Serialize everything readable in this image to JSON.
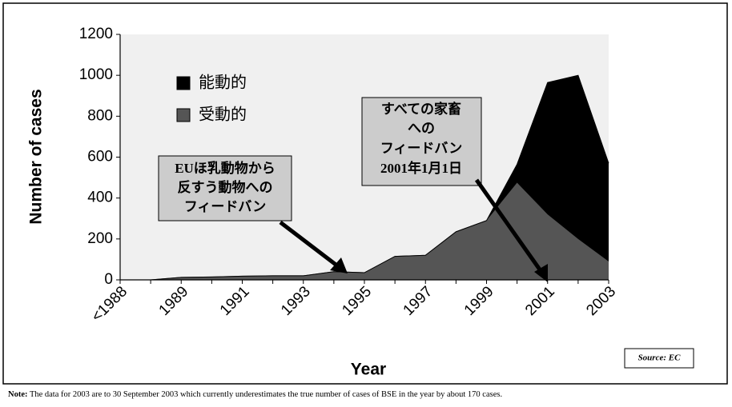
{
  "chart_data": {
    "type": "stacked_area",
    "y_label": "Number of cases",
    "x_label": "Year",
    "categories": [
      "<1988",
      null,
      "1989",
      null,
      "1991",
      null,
      "1993",
      null,
      "1995",
      null,
      "1997",
      null,
      "1999",
      null,
      "2001",
      null,
      "2003"
    ],
    "series": [
      {
        "name": "能動的",
        "color": "#000000",
        "values": [
          0,
          0,
          0,
          0,
          0,
          0,
          0,
          0,
          0,
          0,
          0,
          0,
          0,
          90,
          645,
          800,
          480
        ]
      },
      {
        "name": "受動的",
        "color": "#555555",
        "values": [
          0,
          0,
          12,
          14,
          18,
          20,
          20,
          40,
          35,
          115,
          120,
          235,
          290,
          475,
          320,
          200,
          90
        ]
      }
    ],
    "ylim": [
      0,
      1200
    ],
    "yticks": [
      0,
      200,
      400,
      600,
      800,
      1000,
      1200
    ],
    "legend": "upper left",
    "annotations": [
      {
        "lines": [
          "EUほ乳動物から",
          "反すう動物への",
          "フィードバン"
        ]
      },
      {
        "lines": [
          "すべての家畜",
          "への",
          "フィードバン",
          "2001年1月1日"
        ]
      }
    ],
    "source": "Source: EC",
    "note": {
      "label": "Note:",
      "text": "The data for 2003 are to 30 September 2003 which currently underestimates the true number of cases of BSE in the year by about 170 cases."
    }
  }
}
